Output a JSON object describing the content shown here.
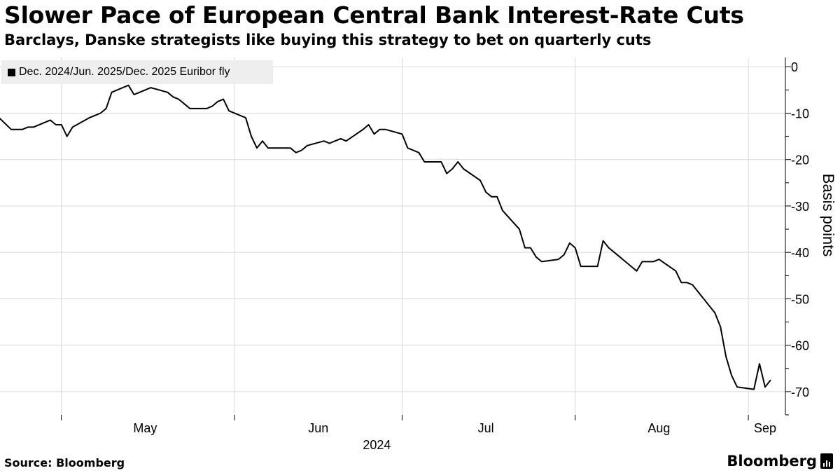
{
  "header": {
    "title": "Slower Pace of European Central Bank Interest-Rate Cuts",
    "subtitle": "Barclays, Danske strategists like buying this strategy to bet on quarterly cuts"
  },
  "footer": {
    "source": "Source: Bloomberg",
    "brand": "Bloomberg"
  },
  "colors": {
    "line": "#000000",
    "grid": "#d9d9d9",
    "legend_bg": "#eeeeee"
  },
  "chart_data": {
    "type": "line",
    "title": "Slower Pace of European Central Bank Interest-Rate Cuts",
    "subtitle": "Barclays, Danske strategists like buying this strategy to bet on quarterly cuts",
    "ylabel": "Basis points",
    "xlabel": "2024",
    "ylim": [
      -75,
      2
    ],
    "y_ticks": [
      0,
      -10,
      -20,
      -30,
      -40,
      -50,
      -60,
      -70
    ],
    "y_tick_labels": [
      "0",
      "-10",
      "-20",
      "-30",
      "-40",
      "-50",
      "-60",
      "-70"
    ],
    "x_range": [
      "2024-04-20",
      "2024-09-04"
    ],
    "x_tick_dates": [
      "2024-05-01",
      "2024-06-01",
      "2024-07-01",
      "2024-08-01",
      "2024-09-01"
    ],
    "x_tick_labels": [
      "May",
      "Jun",
      "Jul",
      "Aug",
      "Sep"
    ],
    "x_year_label": "2024",
    "grid": true,
    "y_axis_position": "right",
    "legend_position": "top-left",
    "series": [
      {
        "name": "Dec. 2024/Jun. 2025/Dec. 2025 Euribor fly",
        "color": "#000000",
        "points": [
          [
            "2024-04-19",
            -10
          ],
          [
            "2024-04-22",
            -13.5
          ],
          [
            "2024-04-23",
            -13.5
          ],
          [
            "2024-04-24",
            -13.5
          ],
          [
            "2024-04-25",
            -13
          ],
          [
            "2024-04-26",
            -13
          ],
          [
            "2024-04-29",
            -11.5
          ],
          [
            "2024-04-30",
            -12.5
          ],
          [
            "2024-05-01",
            -12.5
          ],
          [
            "2024-05-02",
            -15
          ],
          [
            "2024-05-03",
            -13
          ],
          [
            "2024-05-06",
            -11
          ],
          [
            "2024-05-07",
            -10.5
          ],
          [
            "2024-05-08",
            -10
          ],
          [
            "2024-05-09",
            -9
          ],
          [
            "2024-05-10",
            -5.5
          ],
          [
            "2024-05-13",
            -4
          ],
          [
            "2024-05-14",
            -6
          ],
          [
            "2024-05-15",
            -5.5
          ],
          [
            "2024-05-16",
            -5
          ],
          [
            "2024-05-17",
            -4.5
          ],
          [
            "2024-05-20",
            -5.5
          ],
          [
            "2024-05-21",
            -6.5
          ],
          [
            "2024-05-22",
            -7
          ],
          [
            "2024-05-23",
            -8
          ],
          [
            "2024-05-24",
            -9
          ],
          [
            "2024-05-27",
            -9
          ],
          [
            "2024-05-28",
            -8.5
          ],
          [
            "2024-05-29",
            -7.5
          ],
          [
            "2024-05-30",
            -7
          ],
          [
            "2024-05-31",
            -9.5
          ],
          [
            "2024-06-03",
            -11
          ],
          [
            "2024-06-04",
            -15
          ],
          [
            "2024-06-05",
            -17.5
          ],
          [
            "2024-06-06",
            -16
          ],
          [
            "2024-06-07",
            -17.5
          ],
          [
            "2024-06-10",
            -17.5
          ],
          [
            "2024-06-11",
            -17.5
          ],
          [
            "2024-06-12",
            -18.5
          ],
          [
            "2024-06-13",
            -18
          ],
          [
            "2024-06-14",
            -17
          ],
          [
            "2024-06-17",
            -16
          ],
          [
            "2024-06-18",
            -16.5
          ],
          [
            "2024-06-19",
            -16
          ],
          [
            "2024-06-20",
            -15.5
          ],
          [
            "2024-06-21",
            -16
          ],
          [
            "2024-06-24",
            -13.5
          ],
          [
            "2024-06-25",
            -12.5
          ],
          [
            "2024-06-26",
            -14.5
          ],
          [
            "2024-06-27",
            -13.5
          ],
          [
            "2024-06-28",
            -13.5
          ],
          [
            "2024-07-01",
            -14.5
          ],
          [
            "2024-07-02",
            -17.5
          ],
          [
            "2024-07-03",
            -18
          ],
          [
            "2024-07-04",
            -18.5
          ],
          [
            "2024-07-05",
            -20.5
          ],
          [
            "2024-07-08",
            -20.5
          ],
          [
            "2024-07-09",
            -23
          ],
          [
            "2024-07-10",
            -22
          ],
          [
            "2024-07-11",
            -20.5
          ],
          [
            "2024-07-12",
            -22
          ],
          [
            "2024-07-15",
            -24.5
          ],
          [
            "2024-07-16",
            -27
          ],
          [
            "2024-07-17",
            -28
          ],
          [
            "2024-07-18",
            -28
          ],
          [
            "2024-07-19",
            -31
          ],
          [
            "2024-07-22",
            -35
          ],
          [
            "2024-07-23",
            -39
          ],
          [
            "2024-07-24",
            -39
          ],
          [
            "2024-07-25",
            -41
          ],
          [
            "2024-07-26",
            -42
          ],
          [
            "2024-07-29",
            -41.5
          ],
          [
            "2024-07-30",
            -40.5
          ],
          [
            "2024-07-31",
            -38
          ],
          [
            "2024-08-01",
            -39
          ],
          [
            "2024-08-02",
            -43
          ],
          [
            "2024-08-05",
            -43
          ],
          [
            "2024-08-06",
            -37.5
          ],
          [
            "2024-08-07",
            -39
          ],
          [
            "2024-08-08",
            -40
          ],
          [
            "2024-08-09",
            -41
          ],
          [
            "2024-08-12",
            -44
          ],
          [
            "2024-08-13",
            -42
          ],
          [
            "2024-08-14",
            -42
          ],
          [
            "2024-08-15",
            -42
          ],
          [
            "2024-08-16",
            -41.5
          ],
          [
            "2024-08-19",
            -44
          ],
          [
            "2024-08-20",
            -46.5
          ],
          [
            "2024-08-21",
            -46.5
          ],
          [
            "2024-08-22",
            -47
          ],
          [
            "2024-08-23",
            -48.5
          ],
          [
            "2024-08-26",
            -53
          ],
          [
            "2024-08-27",
            -56
          ],
          [
            "2024-08-28",
            -62.5
          ],
          [
            "2024-08-29",
            -66.5
          ],
          [
            "2024-08-30",
            -69
          ],
          [
            "2024-09-02",
            -69.5
          ],
          [
            "2024-09-03",
            -64
          ],
          [
            "2024-09-04",
            -69
          ],
          [
            "2024-09-05",
            -67.5
          ]
        ]
      }
    ]
  }
}
